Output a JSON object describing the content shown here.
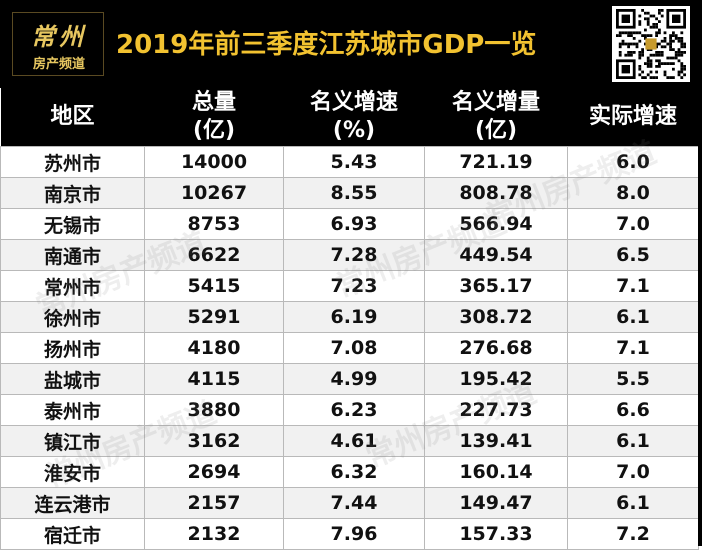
{
  "logo": {
    "brand": "常州",
    "sub": "房产频道"
  },
  "title": "2019年前三季度江苏城市GDP一览",
  "watermark": "常州房产频道",
  "table": {
    "headers": {
      "region": "地区",
      "total_line1": "总量",
      "total_line2": "(亿)",
      "nominal_rate_line1": "名义增速",
      "nominal_rate_line2": "(%)",
      "nominal_inc_line1": "名义增量",
      "nominal_inc_line2": "(亿)",
      "real_rate": "实际增速"
    },
    "rows": [
      {
        "city": "苏州市",
        "total": "14000",
        "nominal_rate": "5.43",
        "nominal_inc": "721.19",
        "real_rate": "6.0"
      },
      {
        "city": "南京市",
        "total": "10267",
        "nominal_rate": "8.55",
        "nominal_inc": "808.78",
        "real_rate": "8.0"
      },
      {
        "city": "无锡市",
        "total": "8753",
        "nominal_rate": "6.93",
        "nominal_inc": "566.94",
        "real_rate": "7.0"
      },
      {
        "city": "南通市",
        "total": "6622",
        "nominal_rate": "7.28",
        "nominal_inc": "449.54",
        "real_rate": "6.5"
      },
      {
        "city": "常州市",
        "total": "5415",
        "nominal_rate": "7.23",
        "nominal_inc": "365.17",
        "real_rate": "7.1"
      },
      {
        "city": "徐州市",
        "total": "5291",
        "nominal_rate": "6.19",
        "nominal_inc": "308.72",
        "real_rate": "6.1"
      },
      {
        "city": "扬州市",
        "total": "4180",
        "nominal_rate": "7.08",
        "nominal_inc": "276.68",
        "real_rate": "7.1"
      },
      {
        "city": "盐城市",
        "total": "4115",
        "nominal_rate": "4.99",
        "nominal_inc": "195.42",
        "real_rate": "5.5"
      },
      {
        "city": "泰州市",
        "total": "3880",
        "nominal_rate": "6.23",
        "nominal_inc": "227.73",
        "real_rate": "6.6"
      },
      {
        "city": "镇江市",
        "total": "3162",
        "nominal_rate": "4.61",
        "nominal_inc": "139.41",
        "real_rate": "6.1"
      },
      {
        "city": "淮安市",
        "total": "2694",
        "nominal_rate": "6.32",
        "nominal_inc": "160.14",
        "real_rate": "7.0"
      },
      {
        "city": "连云港市",
        "total": "2157",
        "nominal_rate": "7.44",
        "nominal_inc": "149.47",
        "real_rate": "6.1"
      },
      {
        "city": "宿迁市",
        "total": "2132",
        "nominal_rate": "7.96",
        "nominal_inc": "157.33",
        "real_rate": "7.2"
      }
    ]
  },
  "colors": {
    "title": "#f2c230",
    "header_bg": "#000000",
    "header_text": "#ffffff",
    "row_alt": "#f1f1f1",
    "logo": "#e7c760"
  },
  "icons": {
    "qr": "qr-code-icon"
  }
}
